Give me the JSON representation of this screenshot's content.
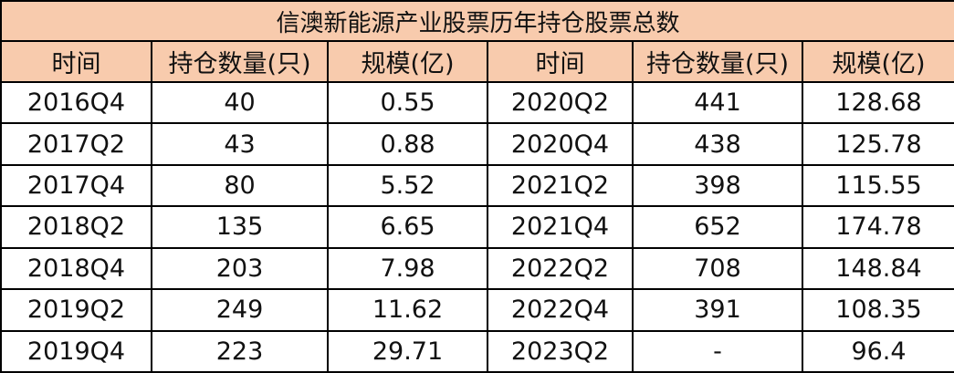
{
  "table": {
    "title": "信澳新能源产业股票历年持仓股票总数",
    "header": [
      "时间",
      "持仓数量(只)",
      "规模(亿)",
      "时间",
      "持仓数量(只)",
      "规模(亿)"
    ],
    "rows": [
      [
        "2016Q4",
        "40",
        "0.55",
        "2020Q2",
        "441",
        "128.68"
      ],
      [
        "2017Q2",
        "43",
        "0.88",
        "2020Q4",
        "438",
        "125.78"
      ],
      [
        "2017Q4",
        "80",
        "5.52",
        "2021Q2",
        "398",
        "115.55"
      ],
      [
        "2018Q2",
        "135",
        "6.65",
        "2021Q4",
        "652",
        "174.78"
      ],
      [
        "2018Q4",
        "203",
        "7.98",
        "2022Q2",
        "708",
        "148.84"
      ],
      [
        "2019Q2",
        "249",
        "11.62",
        "2022Q4",
        "391",
        "108.35"
      ],
      [
        "2019Q4",
        "223",
        "29.71",
        "2023Q2",
        "-",
        "96.4"
      ]
    ]
  }
}
